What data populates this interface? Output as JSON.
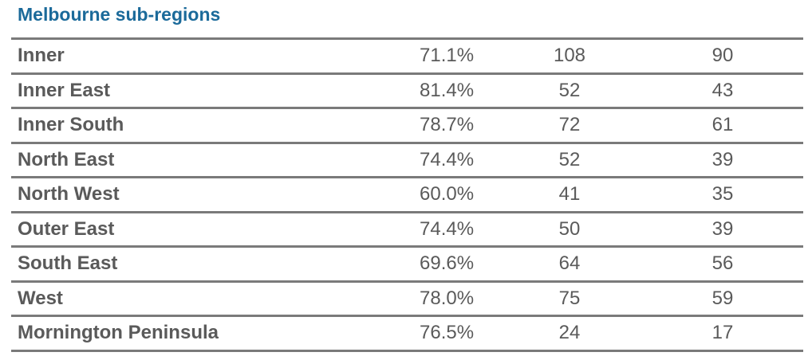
{
  "title": "Melbourne sub-regions",
  "rows": [
    {
      "region": "Inner",
      "pct": "71.1%",
      "n1": "108",
      "n2": "90"
    },
    {
      "region": "Inner East",
      "pct": "81.4%",
      "n1": "52",
      "n2": "43"
    },
    {
      "region": "Inner South",
      "pct": "78.7%",
      "n1": "72",
      "n2": "61"
    },
    {
      "region": "North East",
      "pct": "74.4%",
      "n1": "52",
      "n2": "39"
    },
    {
      "region": "North West",
      "pct": "60.0%",
      "n1": "41",
      "n2": "35"
    },
    {
      "region": "Outer East",
      "pct": "74.4%",
      "n1": "50",
      "n2": "39"
    },
    {
      "region": "South East",
      "pct": "69.6%",
      "n1": "64",
      "n2": "56"
    },
    {
      "region": "West",
      "pct": "78.0%",
      "n1": "75",
      "n2": "59"
    },
    {
      "region": "Mornington Peninsula",
      "pct": "76.5%",
      "n1": "24",
      "n2": "17"
    }
  ],
  "colors": {
    "title": "#1b6a9a",
    "text": "#5a5a5a",
    "rule": "#7a7a7a"
  }
}
